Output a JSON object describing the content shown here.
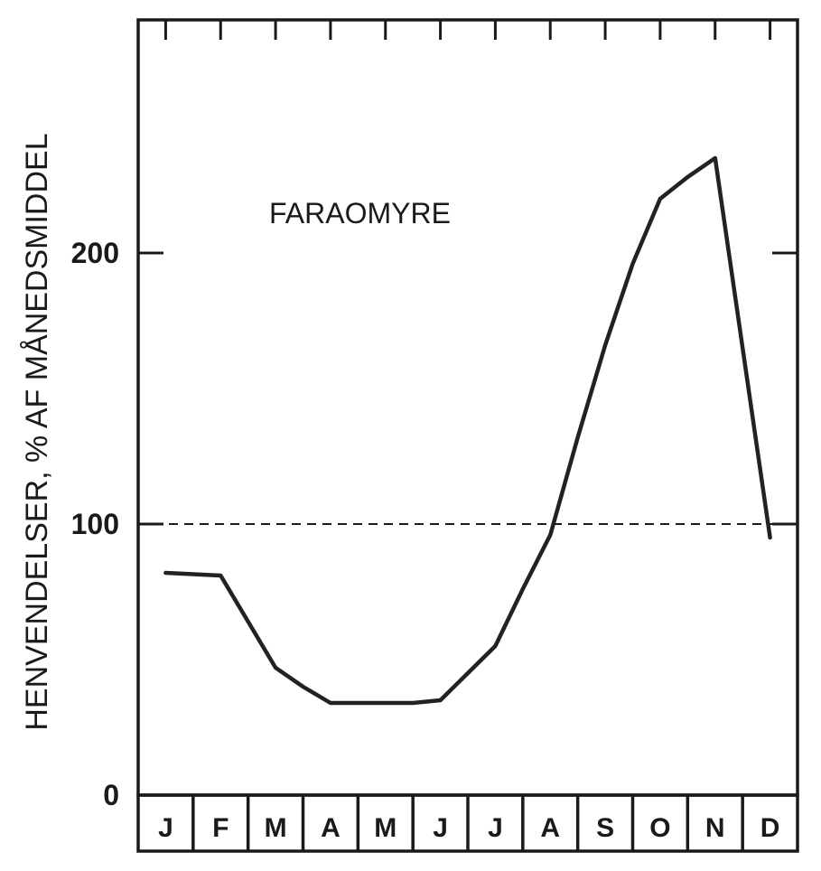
{
  "chart_data": {
    "type": "line",
    "title": "",
    "xlabel": "",
    "ylabel": "HENVENDELSER, % AF MÅNEDSMIDDEL",
    "ylim": [
      0,
      265
    ],
    "y_ticks": [
      0,
      100,
      200
    ],
    "y_tick_labels": [
      "0",
      "100",
      "200"
    ],
    "grid": false,
    "categories": [
      "J",
      "F",
      "M",
      "A",
      "M",
      "J",
      "J",
      "A",
      "S",
      "O",
      "N",
      "D"
    ],
    "series": [
      {
        "name": "FARAOMYRE",
        "x": [
          0.0,
          0.5,
          1.0,
          1.5,
          2.0,
          2.5,
          3.0,
          3.5,
          4.0,
          4.5,
          5.0,
          5.5,
          6.0,
          6.5,
          7.0,
          7.5,
          8.0,
          8.5,
          9.0,
          9.5,
          10.0,
          10.5,
          11.0
        ],
        "values": [
          82,
          81.5,
          81,
          64,
          47,
          40,
          34,
          34,
          34,
          34,
          35,
          45,
          55,
          76,
          96,
          132,
          166,
          196,
          220,
          228,
          235,
          165,
          95
        ]
      }
    ],
    "reference_lines": [
      {
        "y": 100,
        "style": "dashed"
      }
    ],
    "annotations": [
      {
        "text": "FARAOMYRE"
      }
    ]
  },
  "colors": {
    "line": "#222222",
    "frame": "#1a1a1a",
    "background": "#ffffff"
  }
}
